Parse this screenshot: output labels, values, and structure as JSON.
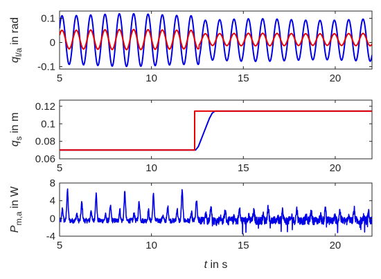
{
  "colors": {
    "series_a": "#0000e6",
    "series_b": "#e60000",
    "axis": "#262626"
  },
  "chart_data": [
    {
      "type": "line",
      "ylabel": {
        "sym": "q",
        "sub": "l/a",
        "unit": " in rad"
      },
      "xlim": [
        5,
        22
      ],
      "ylim": [
        -0.11,
        0.13
      ],
      "xticks": [
        5,
        10,
        15,
        20
      ],
      "xticklabels": [
        "5",
        "10",
        "15",
        "20"
      ],
      "yticks": [
        -0.1,
        0,
        0.1
      ],
      "yticklabels": [
        "-0.1",
        "0",
        "0.1"
      ],
      "series": [
        {
          "color": "#0000e6",
          "model": "oscillation",
          "period": 0.78,
          "center": 0.01,
          "amp_before": 0.105,
          "amp_after": 0.085,
          "change_at": 12.6
        },
        {
          "color": "#e60000",
          "model": "oscillation",
          "period": 0.78,
          "center": 0.012,
          "amp_before": 0.04,
          "amp_after": 0.025,
          "change_at": 12.6
        }
      ]
    },
    {
      "type": "line",
      "ylabel": {
        "sym": "q",
        "sub": "s",
        "unit": " in m"
      },
      "xlim": [
        5,
        22
      ],
      "ylim": [
        0.06,
        0.127
      ],
      "xticks": [
        5,
        10,
        15,
        20
      ],
      "xticklabels": [
        "5",
        "10",
        "15",
        "20"
      ],
      "yticks": [
        0.06,
        0.08,
        0.1,
        0.12
      ],
      "yticklabels": [
        "0.06",
        "0.08",
        "0.1",
        "0.12"
      ],
      "series": [
        {
          "color": "#0000e6",
          "points": [
            [
              5,
              0.07
            ],
            [
              12.4,
              0.07
            ],
            [
              12.55,
              0.074
            ],
            [
              12.7,
              0.082
            ],
            [
              12.85,
              0.09
            ],
            [
              13.0,
              0.098
            ],
            [
              13.15,
              0.106
            ],
            [
              13.3,
              0.112
            ],
            [
              13.45,
              0.1145
            ],
            [
              22,
              0.1145
            ]
          ]
        },
        {
          "color": "#e60000",
          "points": [
            [
              5,
              0.07
            ],
            [
              12.35,
              0.07
            ],
            [
              12.35,
              0.1145
            ],
            [
              22,
              0.1145
            ]
          ]
        }
      ]
    },
    {
      "type": "line",
      "ylabel": {
        "sym": "P",
        "sub": "m,a",
        "unit": " in W"
      },
      "xlabel": {
        "sym": "t",
        "unit": " in s"
      },
      "xlim": [
        5,
        22
      ],
      "ylim": [
        -4,
        8
      ],
      "xticks": [
        5,
        10,
        15,
        20
      ],
      "xticklabels": [
        "5",
        "10",
        "15",
        "20"
      ],
      "yticks": [
        -4,
        0,
        4,
        8
      ],
      "yticklabels": [
        "-4",
        "0",
        "4",
        "8"
      ],
      "series": [
        {
          "color": "#0000e6",
          "model": "noisy-peaks",
          "period": 0.78,
          "peaks_before": [
            6.8,
            4.0,
            6.0,
            3.2,
            6.3,
            4.2,
            5.8,
            3.0,
            6.6,
            4.5
          ],
          "peaks_after": [
            2.5,
            2.0,
            3.0,
            2.2
          ],
          "change_at": 12.6,
          "baseline": -0.5,
          "noise": 0.9,
          "min": -3.5
        }
      ]
    }
  ]
}
